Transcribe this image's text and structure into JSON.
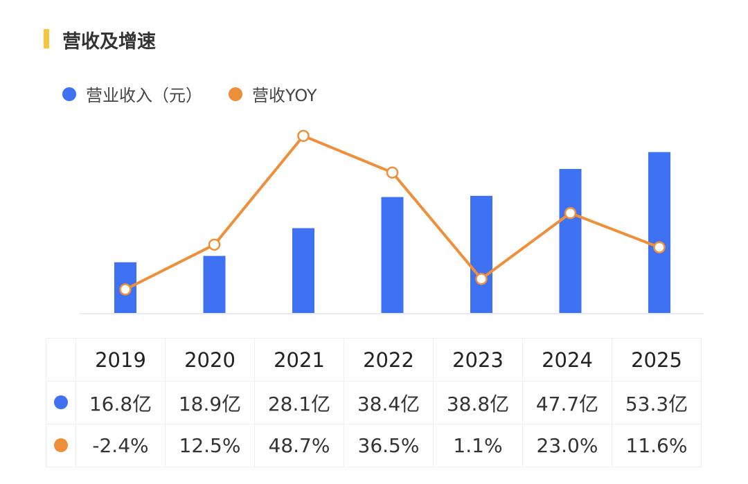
{
  "title": "营收及增速",
  "colors": {
    "revenue": "#3f72f2",
    "yoy": "#f08f3a",
    "accent": "#f5c542"
  },
  "chart_data": {
    "type": "bar+line",
    "title": "营收及增速",
    "categories": [
      "2019",
      "2020",
      "2021",
      "2022",
      "2023",
      "2024",
      "2025"
    ],
    "series": [
      {
        "name": "营业收入（元）",
        "type": "bar",
        "values": [
          16.8,
          18.9,
          28.1,
          38.4,
          38.8,
          47.7,
          53.3
        ],
        "labels": [
          "16.8亿",
          "18.9亿",
          "28.1亿",
          "38.4亿",
          "38.8亿",
          "47.7亿",
          "53.3亿"
        ]
      },
      {
        "name": "营收YOY",
        "type": "line",
        "values": [
          -2.4,
          12.5,
          48.7,
          36.5,
          1.1,
          23.0,
          11.6
        ],
        "labels": [
          "-2.4%",
          "12.5%",
          "48.7%",
          "36.5%",
          "1.1%",
          "23.0%",
          "11.6%"
        ]
      }
    ],
    "legend": "top-left",
    "grid": false
  }
}
